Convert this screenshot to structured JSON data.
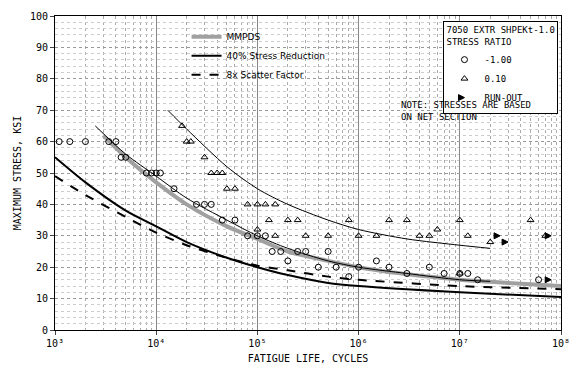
{
  "chart_data": {
    "type": "line",
    "x_label": "FATIGUE LIFE, CYCLES",
    "y_label": "MAXIMUM STRESS, KSI",
    "log": "x",
    "grid": true,
    "legend": "upper left",
    "legend_title": [
      "7050 EXTR SHPEKt-1.0",
      "STRESS RATIO"
    ],
    "annotations": [
      [
        "NOTE: STRESSES ARE BASED",
        "ON NET SECTION"
      ]
    ],
    "xlim": [
      1000,
      100000000
    ],
    "xticks": [
      {
        "value": 1000,
        "label": "10³"
      },
      {
        "value": 10000,
        "label": "10⁴"
      },
      {
        "value": 100000,
        "label": "10⁵"
      },
      {
        "value": 1000000,
        "label": "10⁶"
      },
      {
        "value": 10000000,
        "label": "10⁷"
      },
      {
        "value": 100000000,
        "label": "10⁸"
      }
    ],
    "ylim": [
      0,
      100
    ],
    "yticks": [
      0,
      10,
      20,
      30,
      40,
      50,
      60,
      70,
      80,
      90,
      100
    ],
    "series": [
      {
        "name": "MMPDS",
        "type": "line",
        "color": "#a0a0a0",
        "line_style": "solid",
        "x": [
          3000,
          5000,
          10000,
          20000,
          50000,
          100000,
          200000,
          500000,
          1000000,
          2000000,
          5000000,
          10000000,
          30000000,
          100000000
        ],
        "values": [
          62,
          55,
          47,
          40,
          33,
          29,
          25,
          22,
          20,
          18.5,
          17,
          16,
          15,
          14
        ]
      },
      {
        "name": "40% Stress Reduction",
        "type": "line",
        "color": "#000000",
        "line_style": "solid",
        "x": [
          1000,
          2000,
          5000,
          10000,
          20000,
          50000,
          100000,
          200000,
          500000,
          1000000,
          10000000,
          100000000
        ],
        "values": [
          55,
          47,
          38,
          33,
          28,
          23,
          20,
          17.5,
          15,
          14,
          12,
          10.5
        ]
      },
      {
        "name": "8x Scatter Factor",
        "type": "line",
        "color": "#000000",
        "line_style": "dash",
        "x": [
          1000,
          2000,
          5000,
          10000,
          20000,
          50000,
          100000,
          200000,
          500000,
          1000000,
          10000000,
          100000000
        ],
        "values": [
          49,
          43,
          36,
          31,
          27,
          23,
          20.5,
          19,
          17,
          16,
          14,
          13
        ]
      },
      {
        "type": "line",
        "color": "#000000",
        "line_style": "solid",
        "x": [
          2500,
          5000,
          10000,
          20000,
          50000,
          100000,
          200000,
          500000,
          1000000,
          3000000,
          10000000,
          20000000
        ],
        "values": [
          65,
          56,
          49,
          42,
          35,
          30,
          26,
          22,
          20,
          18,
          16,
          15.5
        ]
      },
      {
        "type": "line",
        "color": "#000000",
        "line_style": "solid",
        "x": [
          13000,
          20000,
          50000,
          100000,
          200000,
          500000,
          1000000,
          3000000,
          10000000,
          20000000
        ],
        "values": [
          70,
          64,
          52,
          45,
          40,
          35,
          32,
          29,
          27,
          26
        ]
      },
      {
        "name": "-1.00",
        "type": "scatter",
        "color": "#000000",
        "marker": "circle-open",
        "x": [
          1100,
          1400,
          2000,
          3400,
          4000,
          4500,
          5000,
          8000,
          9000,
          10000,
          11000,
          15000,
          25000,
          30000,
          35000,
          45000,
          60000,
          80000,
          100000,
          120000,
          140000,
          170000,
          200000,
          250000,
          300000,
          400000,
          500000,
          600000,
          800000,
          1000000,
          1500000,
          2000000,
          3000000,
          5000000,
          7000000,
          10000000,
          12000000,
          15000000,
          60000000
        ],
        "values": [
          60,
          60,
          60,
          60,
          60,
          55,
          55,
          50,
          50,
          50,
          50,
          45,
          40,
          40,
          40,
          35,
          35,
          30,
          30,
          30,
          25,
          25,
          22,
          25,
          25,
          20,
          25,
          20,
          17,
          20,
          22,
          20,
          18,
          20,
          18,
          18,
          18,
          16,
          16
        ]
      },
      {
        "name": "0.10",
        "type": "scatter",
        "color": "#000000",
        "marker": "triangle-up-open",
        "x": [
          18000,
          20000,
          22000,
          30000,
          35000,
          40000,
          45000,
          50000,
          60000,
          80000,
          100000,
          100000,
          120000,
          130000,
          150000,
          150000,
          200000,
          250000,
          300000,
          500000,
          800000,
          1000000,
          1500000,
          2000000,
          3000000,
          4000000,
          5000000,
          6000000,
          10000000,
          10000000,
          12000000,
          20000000,
          50000000,
          70000000
        ],
        "values": [
          65,
          60,
          60,
          55,
          50,
          50,
          50,
          45,
          45,
          40,
          40,
          32,
          40,
          35,
          40,
          30,
          35,
          35,
          30,
          30,
          35,
          30,
          30,
          35,
          35,
          30,
          30,
          32,
          35,
          18,
          30,
          28,
          35,
          30
        ]
      },
      {
        "name": "RUN-OUT",
        "type": "scatter",
        "color": "#000000",
        "marker": "arrow-right",
        "x": [
          25000000,
          30000000,
          80000000,
          80000000
        ],
        "values": [
          30,
          28,
          16,
          30
        ]
      }
    ]
  }
}
